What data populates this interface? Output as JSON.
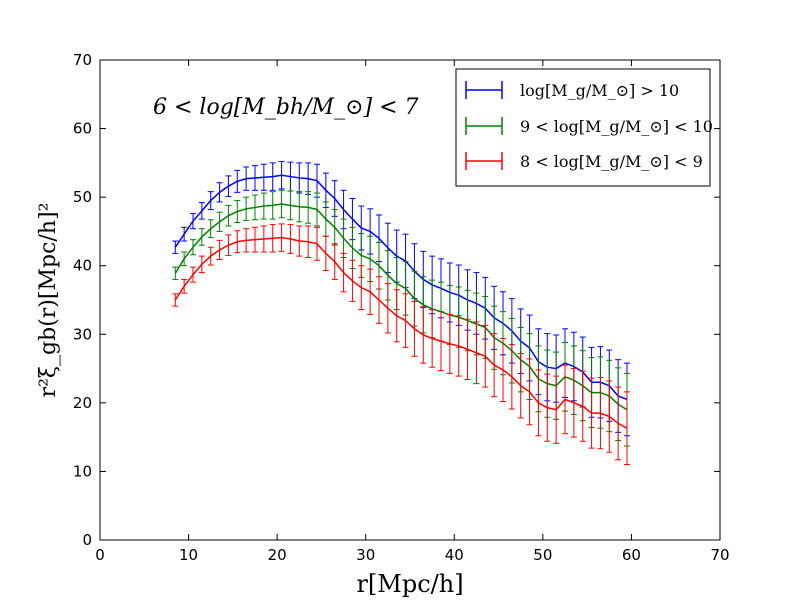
{
  "chart_data": {
    "type": "line",
    "title": "",
    "annotation": "6 < log[M_bh/M_⊙] < 7",
    "xlabel": "r[Mpc/h]",
    "ylabel": "r²ξ_gb(r)[Mpc/h]²",
    "xlim": [
      0,
      70
    ],
    "ylim": [
      0,
      70
    ],
    "xticks": [
      0,
      10,
      20,
      30,
      40,
      50,
      60,
      70
    ],
    "yticks": [
      0,
      10,
      20,
      30,
      40,
      50,
      60,
      70
    ],
    "grid": false,
    "legend_position": "top-right",
    "x": [
      8.5,
      9.5,
      10.5,
      11.5,
      12.5,
      13.5,
      14.5,
      15.5,
      16.5,
      17.5,
      18.5,
      19.5,
      20.5,
      21.5,
      22.5,
      23.5,
      24.5,
      25.5,
      26.5,
      27.5,
      28.5,
      29.5,
      30.5,
      31.5,
      32.5,
      33.5,
      34.5,
      35.5,
      36.5,
      37.5,
      38.5,
      39.5,
      40.5,
      41.5,
      42.5,
      43.5,
      44.5,
      45.5,
      46.5,
      47.5,
      48.5,
      49.5,
      50.5,
      51.5,
      52.5,
      53.5,
      54.5,
      55.5,
      56.5,
      57.5,
      58.5,
      59.5
    ],
    "series": [
      {
        "name": "log[M_g/M_⊙] > 10",
        "color": "#0000ff",
        "values": [
          42.7,
          44.6,
          46.5,
          48.0,
          49.5,
          50.7,
          51.6,
          52.3,
          52.7,
          52.8,
          52.9,
          53.0,
          53.2,
          53.0,
          52.8,
          52.7,
          52.4,
          51.0,
          49.8,
          48.2,
          46.8,
          45.5,
          45.0,
          44.0,
          42.6,
          41.4,
          40.7,
          39.2,
          38.0,
          37.2,
          36.7,
          36.1,
          35.7,
          35.0,
          34.5,
          33.8,
          32.4,
          31.6,
          30.5,
          29.0,
          28.0,
          26.0,
          25.2,
          25.0,
          25.8,
          25.3,
          24.5,
          23.0,
          23.0,
          22.5,
          21.0,
          20.5
        ],
        "errors": [
          0.9,
          1.0,
          1.1,
          1.2,
          1.3,
          1.4,
          1.5,
          1.6,
          1.7,
          1.8,
          1.9,
          2.0,
          2.0,
          2.1,
          2.2,
          2.3,
          2.4,
          2.5,
          2.6,
          2.8,
          3.0,
          3.2,
          3.3,
          3.4,
          3.6,
          3.8,
          3.9,
          4.0,
          4.1,
          4.2,
          4.3,
          4.3,
          4.4,
          4.4,
          4.5,
          4.5,
          4.6,
          4.6,
          4.7,
          4.7,
          4.8,
          4.8,
          4.9,
          4.9,
          5.0,
          5.0,
          5.1,
          5.1,
          5.2,
          5.2,
          5.3,
          5.3
        ],
        "legend_label": "log[M_g/M_⊙] > 10"
      },
      {
        "name": "9 < log[M_g/M_⊙] < 10",
        "color": "#008000",
        "values": [
          38.9,
          41.0,
          42.7,
          44.2,
          45.4,
          46.4,
          47.3,
          47.9,
          48.3,
          48.5,
          48.7,
          48.8,
          49.0,
          48.8,
          48.6,
          48.5,
          48.2,
          46.8,
          45.6,
          44.0,
          42.6,
          41.5,
          41.0,
          40.0,
          38.6,
          37.4,
          36.7,
          35.2,
          34.3,
          33.7,
          33.3,
          32.8,
          32.5,
          32.0,
          31.5,
          31.0,
          29.5,
          28.7,
          27.6,
          26.3,
          25.3,
          23.5,
          22.8,
          22.5,
          23.8,
          23.3,
          22.5,
          21.5,
          21.5,
          21.0,
          19.8,
          19.0
        ],
        "errors": [
          0.9,
          1.0,
          1.1,
          1.2,
          1.3,
          1.4,
          1.5,
          1.6,
          1.7,
          1.8,
          1.9,
          2.0,
          2.0,
          2.1,
          2.2,
          2.3,
          2.4,
          2.5,
          2.6,
          2.8,
          3.0,
          3.2,
          3.3,
          3.4,
          3.6,
          3.8,
          3.9,
          4.0,
          4.1,
          4.2,
          4.3,
          4.3,
          4.4,
          4.4,
          4.5,
          4.5,
          4.6,
          4.6,
          4.7,
          4.7,
          4.8,
          4.8,
          4.9,
          4.9,
          5.0,
          5.0,
          5.1,
          5.1,
          5.2,
          5.2,
          5.3,
          5.3
        ],
        "legend_label": "9 < log[M_g/M_⊙] < 10"
      },
      {
        "name": "8 < log[M_g/M_⊙] < 9",
        "color": "#ff0000",
        "values": [
          35.0,
          37.0,
          38.7,
          40.2,
          41.4,
          42.3,
          43.0,
          43.5,
          43.7,
          43.8,
          43.9,
          44.0,
          44.1,
          43.9,
          43.6,
          43.5,
          43.2,
          41.8,
          40.6,
          39.0,
          37.8,
          36.8,
          36.2,
          35.0,
          33.8,
          32.7,
          32.0,
          30.8,
          29.9,
          29.4,
          29.0,
          28.6,
          28.3,
          27.8,
          27.3,
          26.8,
          25.5,
          24.8,
          23.8,
          22.5,
          21.6,
          20.0,
          19.3,
          19.0,
          20.5,
          20.0,
          19.5,
          18.5,
          18.5,
          18.0,
          17.0,
          16.3
        ],
        "errors": [
          0.9,
          1.0,
          1.1,
          1.2,
          1.3,
          1.4,
          1.5,
          1.6,
          1.7,
          1.8,
          1.9,
          2.0,
          2.0,
          2.1,
          2.2,
          2.3,
          2.4,
          2.5,
          2.6,
          2.8,
          3.0,
          3.2,
          3.3,
          3.4,
          3.6,
          3.8,
          3.9,
          4.0,
          4.1,
          4.2,
          4.3,
          4.3,
          4.4,
          4.4,
          4.5,
          4.5,
          4.6,
          4.6,
          4.7,
          4.7,
          4.8,
          4.8,
          4.9,
          4.9,
          5.0,
          5.0,
          5.1,
          5.1,
          5.2,
          5.2,
          5.3,
          5.3
        ],
        "legend_label": "8 < log[M_g/M_⊙] < 9"
      }
    ]
  }
}
